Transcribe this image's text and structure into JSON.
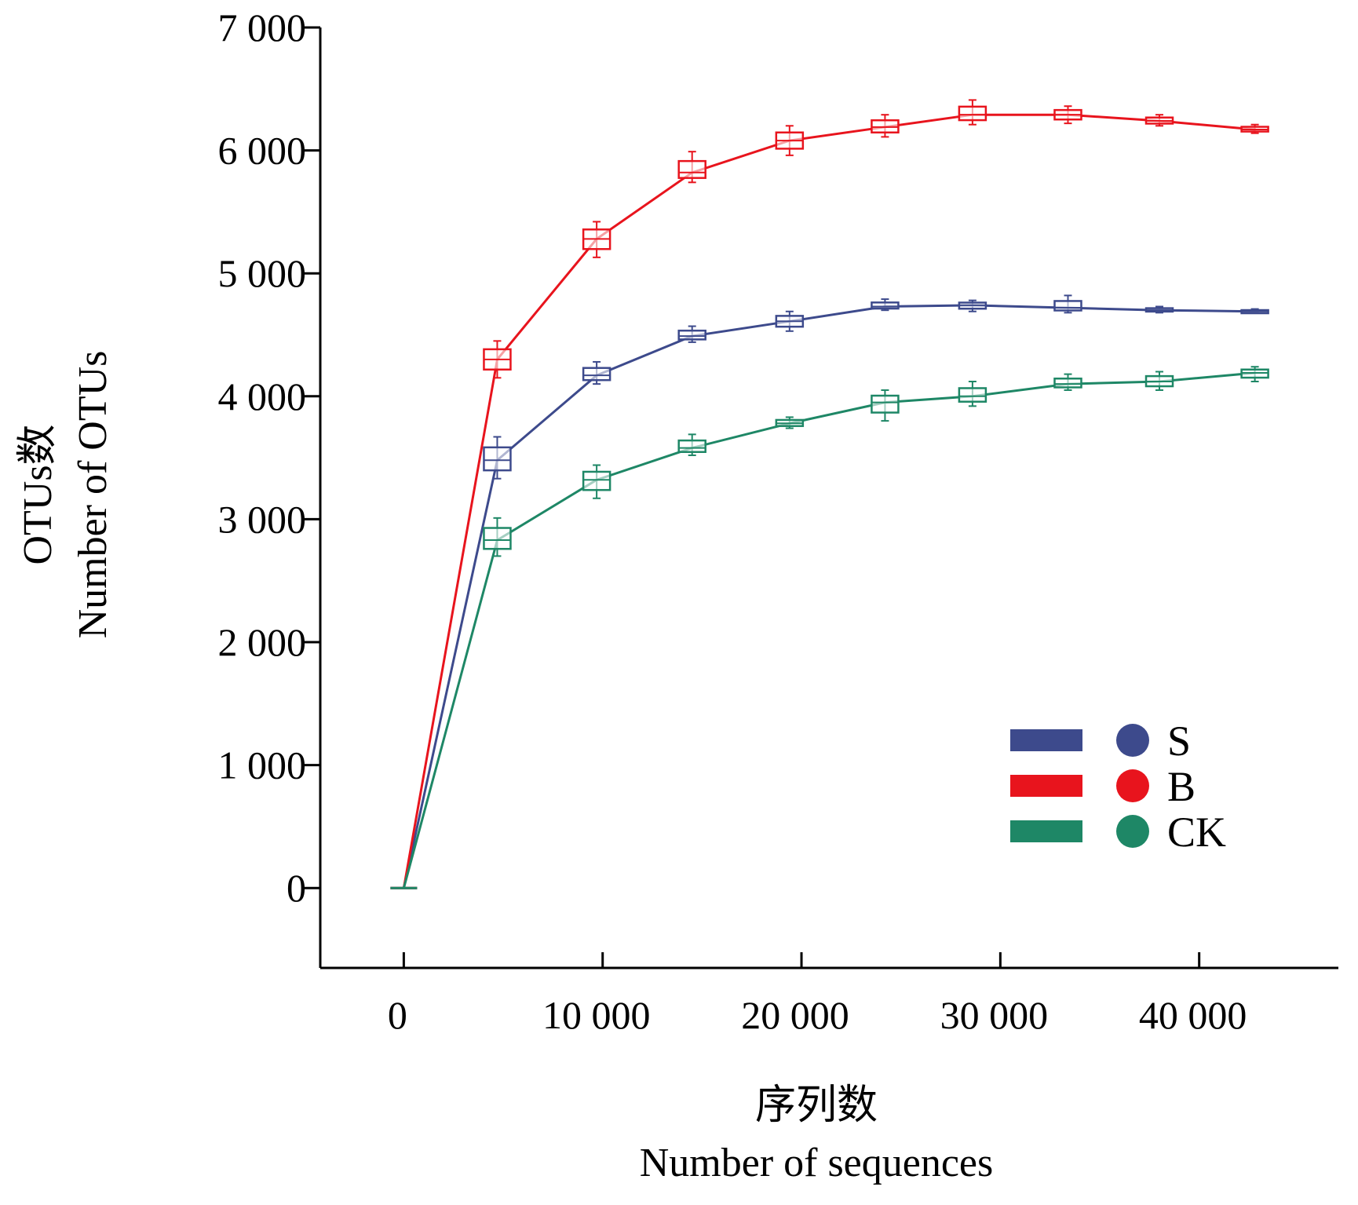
{
  "chart_data": {
    "type": "line",
    "title": "",
    "xlabel": [
      "序列数",
      "Number of sequences"
    ],
    "ylabel": [
      "OTUs数",
      "Number of OTUs"
    ],
    "xlim": [
      -4200,
      47000
    ],
    "ylim": [
      -650,
      7000
    ],
    "xticks": [
      0,
      10000,
      20000,
      30000,
      40000
    ],
    "xtick_labels": [
      "0",
      "10 000",
      "20 000",
      "30 000",
      "40 000"
    ],
    "yticks": [
      0,
      1000,
      2000,
      3000,
      4000,
      5000,
      6000,
      7000
    ],
    "ytick_labels": [
      "0",
      "1 000",
      "2 000",
      "3 000",
      "4 000",
      "5 000",
      "6 000",
      "7 000"
    ],
    "grid": false,
    "legend_position": "bottom-right",
    "x": [
      0,
      4700,
      9700,
      14500,
      19400,
      24200,
      28600,
      33400,
      38000,
      42800
    ],
    "series": [
      {
        "name": "S",
        "color": "#3d4a8c",
        "values": [
          0,
          3480,
          4170,
          4490,
          4610,
          4730,
          4740,
          4720,
          4700,
          4690
        ],
        "ranges": [
          [
            0,
            0
          ],
          [
            3330,
            3670
          ],
          [
            4100,
            4280
          ],
          [
            4440,
            4570
          ],
          [
            4530,
            4690
          ],
          [
            4700,
            4790
          ],
          [
            4690,
            4780
          ],
          [
            4680,
            4820
          ],
          [
            4680,
            4730
          ],
          [
            4680,
            4710
          ]
        ]
      },
      {
        "name": "B",
        "color": "#e8141d",
        "values": [
          0,
          4300,
          5280,
          5820,
          6080,
          6190,
          6290,
          6290,
          6240,
          6170
        ],
        "ranges": [
          [
            0,
            0
          ],
          [
            4150,
            4450
          ],
          [
            5130,
            5420
          ],
          [
            5740,
            5990
          ],
          [
            5960,
            6200
          ],
          [
            6110,
            6290
          ],
          [
            6210,
            6410
          ],
          [
            6220,
            6360
          ],
          [
            6200,
            6290
          ],
          [
            6140,
            6210
          ]
        ]
      },
      {
        "name": "CK",
        "color": "#1e8766",
        "values": [
          0,
          2830,
          3320,
          3580,
          3780,
          3950,
          4000,
          4100,
          4120,
          4190
        ],
        "ranges": [
          [
            0,
            0
          ],
          [
            2700,
            3010
          ],
          [
            3170,
            3440
          ],
          [
            3520,
            3690
          ],
          [
            3740,
            3830
          ],
          [
            3800,
            4050
          ],
          [
            3920,
            4120
          ],
          [
            4050,
            4180
          ],
          [
            4050,
            4200
          ],
          [
            4120,
            4240
          ]
        ]
      }
    ]
  }
}
